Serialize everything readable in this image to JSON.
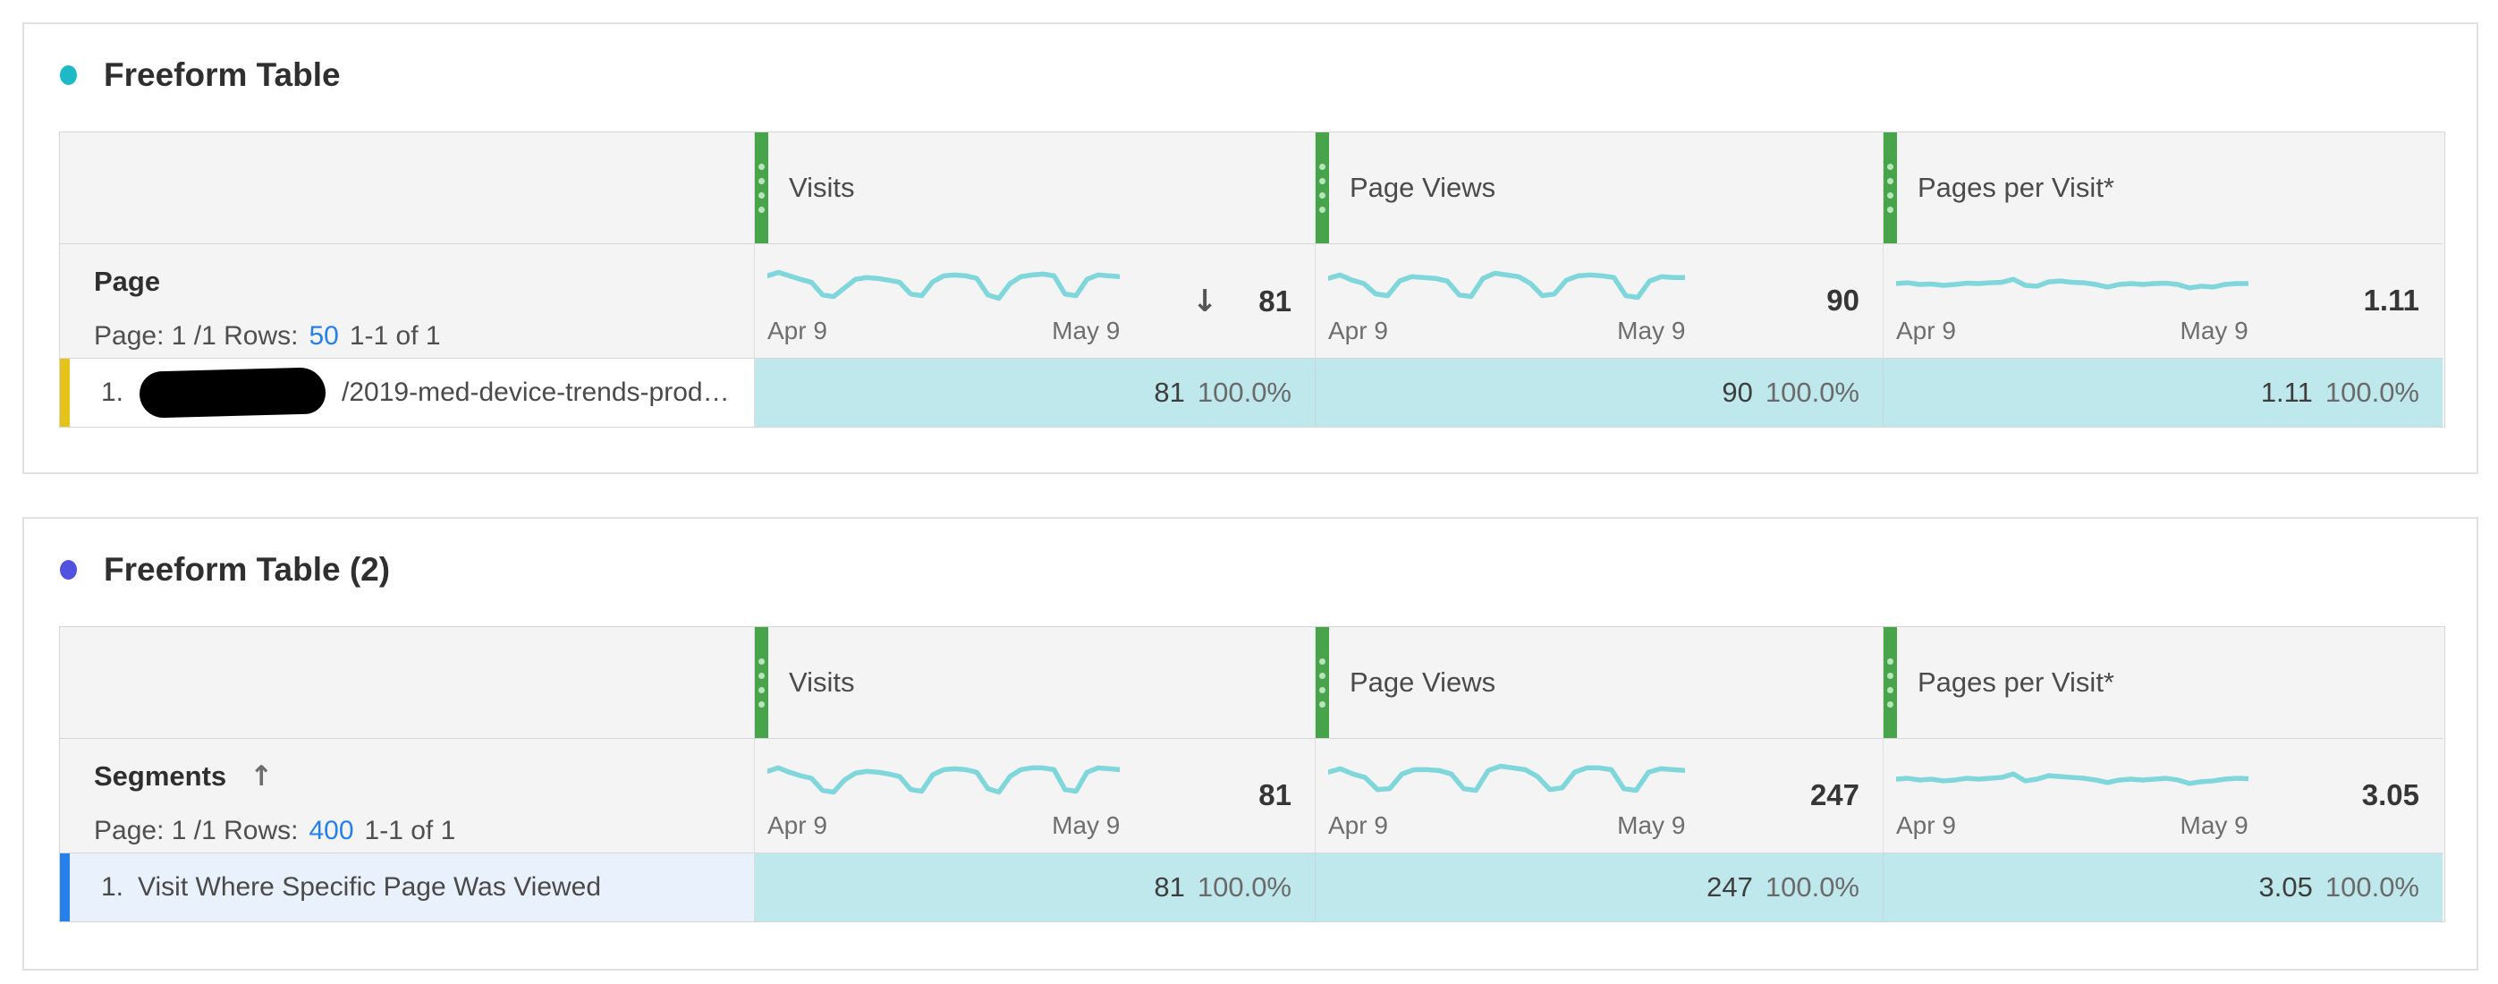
{
  "colors": {
    "panel1_dot": "#1db9c6",
    "panel2_dot": "#5153e0",
    "drag_handle_green": "#47a44b",
    "drag_handle_dots": "#b9e3ba",
    "sparkline": "#7fd6db",
    "value_cell_bg": "#bfe8ec",
    "selected_row_bg": "#e9f2fc",
    "row_bar_yellow": "#e5c31a",
    "row_bar_blue": "#2680eb",
    "link_blue": "#2680eb"
  },
  "panels": [
    {
      "title": "Freeform Table",
      "columns": [
        {
          "label": "Visits"
        },
        {
          "label": "Page Views"
        },
        {
          "label": "Pages per Visit*"
        }
      ],
      "dimension": {
        "name": "Page",
        "sort_arrow": "",
        "pagination_prefix": "Page: 1 /1 Rows:",
        "rows_value": "50",
        "range_text": "1-1 of 1"
      },
      "metrics": [
        {
          "total": "81",
          "sort_arrow": "↓",
          "date_start": "Apr 9",
          "date_end": "May 9",
          "spark": [
            0.7,
            0.78,
            0.7,
            0.62,
            0.55,
            0.26,
            0.22,
            0.42,
            0.62,
            0.66,
            0.64,
            0.6,
            0.55,
            0.28,
            0.24,
            0.56,
            0.7,
            0.72,
            0.7,
            0.64,
            0.26,
            0.18,
            0.52,
            0.68,
            0.72,
            0.74,
            0.7,
            0.28,
            0.24,
            0.62,
            0.72,
            0.7,
            0.68
          ]
        },
        {
          "total": "90",
          "sort_arrow": "",
          "date_start": "Apr 9",
          "date_end": "May 9",
          "spark": [
            0.64,
            0.72,
            0.6,
            0.52,
            0.28,
            0.24,
            0.58,
            0.68,
            0.66,
            0.64,
            0.58,
            0.26,
            0.22,
            0.64,
            0.76,
            0.72,
            0.68,
            0.52,
            0.24,
            0.28,
            0.6,
            0.7,
            0.72,
            0.7,
            0.66,
            0.24,
            0.2,
            0.58,
            0.68,
            0.66,
            0.66
          ]
        },
        {
          "total": "1.11",
          "sort_arrow": "",
          "date_start": "Apr 9",
          "date_end": "May 9",
          "spark": [
            0.52,
            0.54,
            0.5,
            0.51,
            0.48,
            0.5,
            0.53,
            0.52,
            0.54,
            0.55,
            0.62,
            0.48,
            0.46,
            0.56,
            0.58,
            0.55,
            0.54,
            0.5,
            0.44,
            0.5,
            0.52,
            0.5,
            0.52,
            0.53,
            0.5,
            0.42,
            0.46,
            0.44,
            0.5,
            0.52,
            0.52
          ]
        }
      ],
      "row": {
        "rank": "1.",
        "redacted": true,
        "label": "/2019-med-device-trends-prod…",
        "values": [
          {
            "value": "81",
            "pct": "100.0%"
          },
          {
            "value": "90",
            "pct": "100.0%"
          },
          {
            "value": "1.11",
            "pct": "100.0%"
          }
        ]
      }
    },
    {
      "title": "Freeform Table (2)",
      "columns": [
        {
          "label": "Visits"
        },
        {
          "label": "Page Views"
        },
        {
          "label": "Pages per Visit*"
        }
      ],
      "dimension": {
        "name": "Segments",
        "sort_arrow": "↑",
        "pagination_prefix": "Page: 1 /1 Rows:",
        "rows_value": "400",
        "range_text": "1-1 of 1"
      },
      "metrics": [
        {
          "total": "81",
          "sort_arrow": "",
          "date_start": "Apr 9",
          "date_end": "May 9",
          "spark": [
            0.68,
            0.76,
            0.66,
            0.58,
            0.52,
            0.24,
            0.2,
            0.48,
            0.64,
            0.68,
            0.66,
            0.62,
            0.56,
            0.26,
            0.22,
            0.6,
            0.72,
            0.74,
            0.72,
            0.66,
            0.28,
            0.2,
            0.56,
            0.72,
            0.76,
            0.76,
            0.72,
            0.26,
            0.22,
            0.66,
            0.76,
            0.74,
            0.72
          ]
        },
        {
          "total": "247",
          "sort_arrow": "",
          "date_start": "Apr 9",
          "date_end": "May 9",
          "spark": [
            0.66,
            0.74,
            0.62,
            0.54,
            0.26,
            0.28,
            0.62,
            0.72,
            0.72,
            0.7,
            0.62,
            0.28,
            0.24,
            0.7,
            0.8,
            0.76,
            0.72,
            0.56,
            0.26,
            0.3,
            0.66,
            0.76,
            0.76,
            0.72,
            0.28,
            0.24,
            0.66,
            0.74,
            0.72,
            0.7
          ]
        },
        {
          "total": "3.05",
          "sort_arrow": "",
          "date_start": "Apr 9",
          "date_end": "May 9",
          "spark": [
            0.5,
            0.52,
            0.48,
            0.5,
            0.46,
            0.48,
            0.52,
            0.5,
            0.52,
            0.54,
            0.62,
            0.46,
            0.5,
            0.58,
            0.56,
            0.54,
            0.52,
            0.48,
            0.42,
            0.48,
            0.5,
            0.48,
            0.5,
            0.52,
            0.48,
            0.4,
            0.44,
            0.46,
            0.5,
            0.52,
            0.51
          ]
        }
      ],
      "row": {
        "rank": "1.",
        "redacted": false,
        "label": "Visit Where Specific Page Was Viewed",
        "values": [
          {
            "value": "81",
            "pct": "100.0%"
          },
          {
            "value": "247",
            "pct": "100.0%"
          },
          {
            "value": "3.05",
            "pct": "100.0%"
          }
        ]
      }
    }
  ]
}
